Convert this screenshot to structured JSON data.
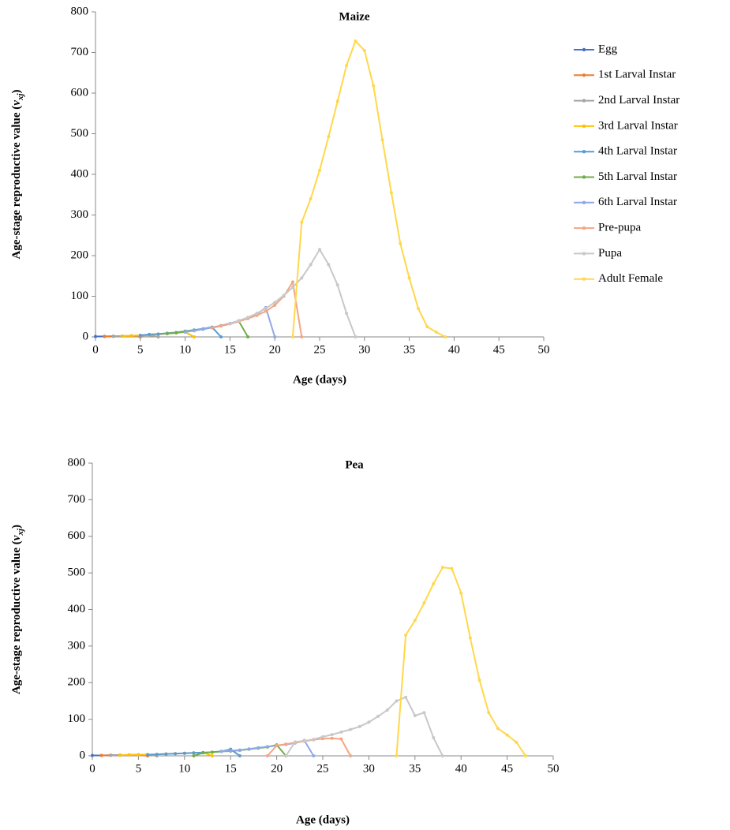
{
  "chart_data": [
    {
      "type": "line",
      "title": "Maize",
      "x_label": "Age (days)",
      "y_label": {
        "text": "Age-stage reproductive value (",
        "var": "v",
        "sub": "xj",
        "close": ")"
      },
      "xlim": [
        0,
        50
      ],
      "xticks": [
        0,
        5,
        10,
        15,
        20,
        25,
        30,
        35,
        40,
        45,
        50
      ],
      "ylim": [
        0,
        800
      ],
      "yticks": [
        0,
        100,
        200,
        300,
        400,
        500,
        600,
        700,
        800
      ],
      "grid": false,
      "legend": "right",
      "series": [
        {
          "name": "Egg",
          "color": "#4472c4",
          "x": [
            0,
            1,
            2,
            3,
            4
          ],
          "values": [
            1,
            1.2,
            1.5,
            2,
            2.5
          ]
        },
        {
          "name": "1st Larval Instar",
          "color": "#ed7d31",
          "x": [
            1,
            2,
            3,
            4,
            5
          ],
          "values": [
            1.2,
            1.5,
            2,
            2.5,
            0
          ]
        },
        {
          "name": "2nd Larval Instar",
          "color": "#a5a5a5",
          "x": [
            2,
            3,
            4,
            5,
            6,
            7
          ],
          "values": [
            1.5,
            2,
            2.5,
            3,
            4,
            0
          ]
        },
        {
          "name": "3rd Larval Instar",
          "color": "#ffc000",
          "x": [
            3,
            4,
            5,
            6,
            7,
            8,
            9,
            10,
            11
          ],
          "values": [
            2,
            3,
            4,
            5,
            6,
            8,
            10,
            12,
            0
          ]
        },
        {
          "name": "4th Larval Instar",
          "color": "#5b9bd5",
          "x": [
            5,
            6,
            7,
            8,
            9,
            10,
            11,
            12,
            13,
            14
          ],
          "values": [
            4,
            6,
            7,
            9,
            11,
            14,
            17,
            20,
            24,
            0
          ]
        },
        {
          "name": "5th Larval Instar",
          "color": "#70ad47",
          "x": [
            8,
            9,
            10,
            11,
            12,
            13,
            14,
            15,
            16,
            17
          ],
          "values": [
            8,
            10,
            13,
            16,
            19,
            23,
            27,
            32,
            38,
            0
          ]
        },
        {
          "name": "6th Larval Instar",
          "color": "#8fa8e8",
          "x": [
            10,
            11,
            12,
            13,
            14,
            15,
            16,
            17,
            18,
            19,
            20
          ],
          "values": [
            12,
            15,
            19,
            23,
            28,
            33,
            40,
            47,
            56,
            72,
            0
          ]
        },
        {
          "name": "Pre-pupa",
          "color": "#f4a582",
          "x": [
            13,
            14,
            15,
            16,
            17,
            18,
            19,
            20,
            21,
            22,
            23
          ],
          "values": [
            22,
            27,
            32,
            38,
            45,
            53,
            63,
            78,
            100,
            135,
            0
          ]
        },
        {
          "name": "Pupa",
          "color": "#c8c8c8",
          "x": [
            15,
            16,
            17,
            18,
            19,
            20,
            21,
            22,
            23,
            24,
            25,
            26,
            27,
            28,
            29
          ],
          "values": [
            32,
            40,
            48,
            58,
            70,
            85,
            102,
            122,
            145,
            178,
            215,
            178,
            128,
            58,
            0
          ]
        },
        {
          "name": "Adult Female",
          "color": "#ffd84a",
          "x": [
            22,
            23,
            24,
            25,
            26,
            27,
            28,
            29,
            30,
            31,
            32,
            33,
            34,
            35,
            36,
            37,
            38,
            39
          ],
          "values": [
            0,
            282,
            340,
            410,
            493,
            580,
            668,
            728,
            705,
            618,
            485,
            355,
            230,
            145,
            70,
            25,
            12,
            0
          ]
        }
      ]
    },
    {
      "type": "line",
      "title": "Pea",
      "x_label": "Age (days)",
      "y_label": {
        "text": "Age-stage reproductive value (",
        "var": "v",
        "sub": "xj",
        "close": ")"
      },
      "xlim": [
        0,
        50
      ],
      "xticks": [
        0,
        5,
        10,
        15,
        20,
        25,
        30,
        35,
        40,
        45,
        50
      ],
      "ylim": [
        0,
        800
      ],
      "yticks": [
        0,
        100,
        200,
        300,
        400,
        500,
        600,
        700,
        800
      ],
      "grid": false,
      "series": [
        {
          "color": "#4472c4",
          "x": [
            0,
            1,
            2,
            3,
            4
          ],
          "values": [
            1,
            1.2,
            1.5,
            2,
            2.5
          ]
        },
        {
          "color": "#ed7d31",
          "x": [
            1,
            2,
            3,
            4,
            5,
            6
          ],
          "values": [
            1.2,
            1.5,
            2,
            2.5,
            3,
            0
          ]
        },
        {
          "color": "#a5a5a5",
          "x": [
            2,
            3,
            4,
            5,
            6,
            7
          ],
          "values": [
            1.5,
            2,
            2.5,
            3,
            3.5,
            0
          ]
        },
        {
          "color": "#ffc000",
          "x": [
            3,
            4,
            5,
            6,
            7,
            8,
            9,
            10,
            11,
            12,
            13
          ],
          "values": [
            2,
            2.5,
            3,
            3.5,
            4,
            5,
            6,
            7,
            8,
            9,
            0
          ]
        },
        {
          "color": "#5b9bd5",
          "x": [
            6,
            7,
            8,
            9,
            10,
            11,
            12,
            13,
            14,
            15,
            16
          ],
          "values": [
            3,
            4,
            5,
            6,
            7,
            8,
            9,
            10,
            12,
            18,
            0
          ]
        },
        {
          "color": "#70ad47",
          "x": [
            11,
            12,
            13,
            14,
            15,
            16,
            17,
            18,
            19,
            20,
            21
          ],
          "values": [
            0,
            8,
            10,
            12,
            13,
            15,
            18,
            21,
            24,
            30,
            0
          ]
        },
        {
          "color": "#8fa8e8",
          "x": [
            14,
            15,
            16,
            17,
            18,
            19,
            20,
            21,
            22,
            23,
            24
          ],
          "values": [
            12,
            14,
            16,
            19,
            22,
            25,
            28,
            31,
            35,
            42,
            0
          ]
        },
        {
          "color": "#f4a582",
          "x": [
            19,
            20,
            21,
            22,
            23,
            24,
            25,
            26,
            27,
            28
          ],
          "values": [
            0,
            28,
            32,
            36,
            40,
            44,
            47,
            48,
            46,
            0
          ]
        },
        {
          "color": "#c8c8c8",
          "x": [
            21,
            22,
            23,
            24,
            25,
            26,
            27,
            28,
            29,
            30,
            31,
            32,
            33,
            34,
            35,
            36,
            37,
            38
          ],
          "values": [
            0,
            38,
            41,
            45,
            52,
            58,
            65,
            72,
            80,
            92,
            108,
            125,
            150,
            160,
            110,
            118,
            50,
            0
          ]
        },
        {
          "color": "#ffd84a",
          "x": [
            33,
            34,
            35,
            36,
            37,
            38,
            39,
            40,
            41,
            42,
            43,
            44,
            45,
            46,
            47
          ],
          "values": [
            0,
            330,
            370,
            418,
            470,
            515,
            512,
            445,
            322,
            207,
            118,
            75,
            57,
            37,
            0
          ]
        }
      ]
    }
  ]
}
